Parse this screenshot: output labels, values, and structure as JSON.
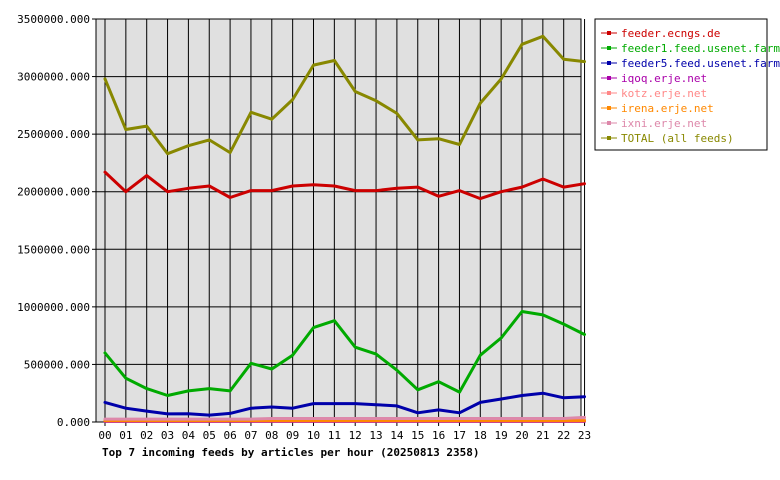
{
  "chart_data": {
    "type": "line",
    "title": "Top 7 incoming feeds by articles per hour (20250813 2358)",
    "x": [
      "00",
      "01",
      "02",
      "03",
      "04",
      "05",
      "06",
      "07",
      "08",
      "09",
      "10",
      "11",
      "12",
      "13",
      "14",
      "15",
      "16",
      "17",
      "18",
      "19",
      "20",
      "21",
      "22",
      "23"
    ],
    "y_ticks": [
      "0.000",
      "500000.000",
      "1000000.000",
      "1500000.000",
      "2000000.000",
      "2500000.000",
      "3000000.000",
      "3500000.000"
    ],
    "ylim": [
      0,
      3500000
    ],
    "grid": true,
    "legend_position": "top-right",
    "series": [
      {
        "name": "feeder.ecngs.de",
        "color": "#cc0000",
        "values": [
          2170000,
          2000000,
          2140000,
          2000000,
          2030000,
          2050000,
          1950000,
          2010000,
          2010000,
          2050000,
          2060000,
          2050000,
          2010000,
          2010000,
          2030000,
          2040000,
          1960000,
          2010000,
          1940000,
          2000000,
          2040000,
          2110000,
          2040000,
          2070000
        ]
      },
      {
        "name": "feeder1.feed.usenet.farm",
        "color": "#00aa00",
        "values": [
          600000,
          380000,
          290000,
          230000,
          270000,
          290000,
          270000,
          510000,
          460000,
          580000,
          820000,
          880000,
          650000,
          590000,
          450000,
          280000,
          350000,
          260000,
          580000,
          730000,
          960000,
          930000,
          850000,
          760000
        ]
      },
      {
        "name": "feeder5.feed.usenet.farm",
        "color": "#0000aa",
        "values": [
          170000,
          120000,
          95000,
          70000,
          72000,
          60000,
          75000,
          120000,
          130000,
          120000,
          160000,
          160000,
          160000,
          150000,
          140000,
          80000,
          105000,
          80000,
          170000,
          200000,
          230000,
          250000,
          210000,
          220000
        ]
      },
      {
        "name": "iqoq.erje.net",
        "color": "#aa00aa",
        "values": [
          5000,
          5000,
          5000,
          5000,
          5000,
          5000,
          5000,
          5000,
          5000,
          5000,
          5000,
          5000,
          5000,
          5000,
          5000,
          5000,
          5000,
          5000,
          5000,
          5000,
          5000,
          5000,
          5000,
          5000
        ]
      },
      {
        "name": "kotz.erje.net",
        "color": "#ff8888",
        "values": [
          20000,
          20000,
          20000,
          20000,
          20000,
          20000,
          20000,
          20000,
          20000,
          20000,
          20000,
          20000,
          20000,
          20000,
          20000,
          20000,
          20000,
          20000,
          20000,
          20000,
          20000,
          20000,
          20000,
          20000
        ]
      },
      {
        "name": "irena.erje.net",
        "color": "#ff8800",
        "values": [
          10000,
          10000,
          10000,
          10000,
          10000,
          10000,
          10000,
          10000,
          10000,
          10000,
          10000,
          10000,
          10000,
          10000,
          10000,
          10000,
          10000,
          10000,
          10000,
          10000,
          10000,
          10000,
          10000,
          10000
        ]
      },
      {
        "name": "ixni.erje.net",
        "color": "#dd88aa",
        "values": [
          25000,
          25000,
          25000,
          25000,
          25000,
          25000,
          25000,
          25000,
          30000,
          30000,
          30000,
          30000,
          30000,
          30000,
          30000,
          30000,
          30000,
          30000,
          30000,
          30000,
          30000,
          30000,
          30000,
          40000
        ]
      },
      {
        "name": "TOTAL (all feeds)",
        "color": "#888800",
        "values": [
          2980000,
          2540000,
          2570000,
          2330000,
          2400000,
          2450000,
          2340000,
          2690000,
          2630000,
          2800000,
          3100000,
          3140000,
          2870000,
          2790000,
          2680000,
          2450000,
          2460000,
          2410000,
          2770000,
          2980000,
          3280000,
          3350000,
          3150000,
          3130000
        ]
      }
    ]
  }
}
